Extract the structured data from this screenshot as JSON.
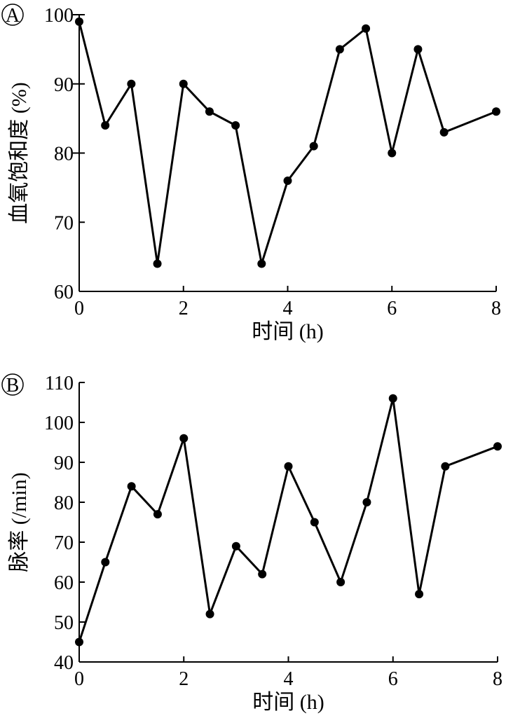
{
  "chart_data": [
    {
      "type": "line",
      "panel_label": "A",
      "xlabel": "时间 (h)",
      "ylabel": "血氧饱和度 (%)",
      "xlim": [
        0,
        8
      ],
      "ylim": [
        60,
        100
      ],
      "x_ticks": [
        0,
        2,
        4,
        6,
        8
      ],
      "y_ticks": [
        60,
        70,
        80,
        90,
        100
      ],
      "y_tick_labels": [
        "60",
        "70",
        "80",
        "90",
        "100"
      ],
      "y_unlabeled_ticks": [
        100,
        90,
        80
      ],
      "grid": false,
      "series": [
        {
          "x": [
            0,
            0.5,
            1,
            1.5,
            2,
            2.5,
            3,
            3.5,
            4,
            4.5,
            5,
            5.5,
            6,
            6.5,
            7,
            8
          ],
          "values": [
            99,
            84,
            90,
            64,
            90,
            86,
            84,
            64,
            76,
            81,
            95,
            98,
            80,
            95,
            83,
            86
          ]
        }
      ]
    },
    {
      "type": "line",
      "panel_label": "B",
      "xlabel": "时间 (h)",
      "ylabel": "脉率 (/min)",
      "xlim": [
        0,
        8
      ],
      "ylim": [
        40,
        110
      ],
      "x_ticks": [
        0,
        2,
        4,
        6,
        8
      ],
      "y_ticks": [
        40,
        50,
        60,
        70,
        80,
        90,
        100,
        110
      ],
      "y_tick_labels": [
        "40",
        "50",
        "60",
        "70",
        "80",
        "90",
        "100",
        "110"
      ],
      "grid": false,
      "series": [
        {
          "x": [
            0,
            0.5,
            1,
            1.5,
            2,
            2.5,
            3,
            3.5,
            4,
            4.5,
            5,
            5.5,
            6,
            6.5,
            7,
            8
          ],
          "values": [
            45,
            65,
            84,
            77,
            96,
            52,
            69,
            62,
            89,
            75,
            60,
            80,
            106,
            57,
            89,
            94
          ]
        }
      ]
    }
  ]
}
